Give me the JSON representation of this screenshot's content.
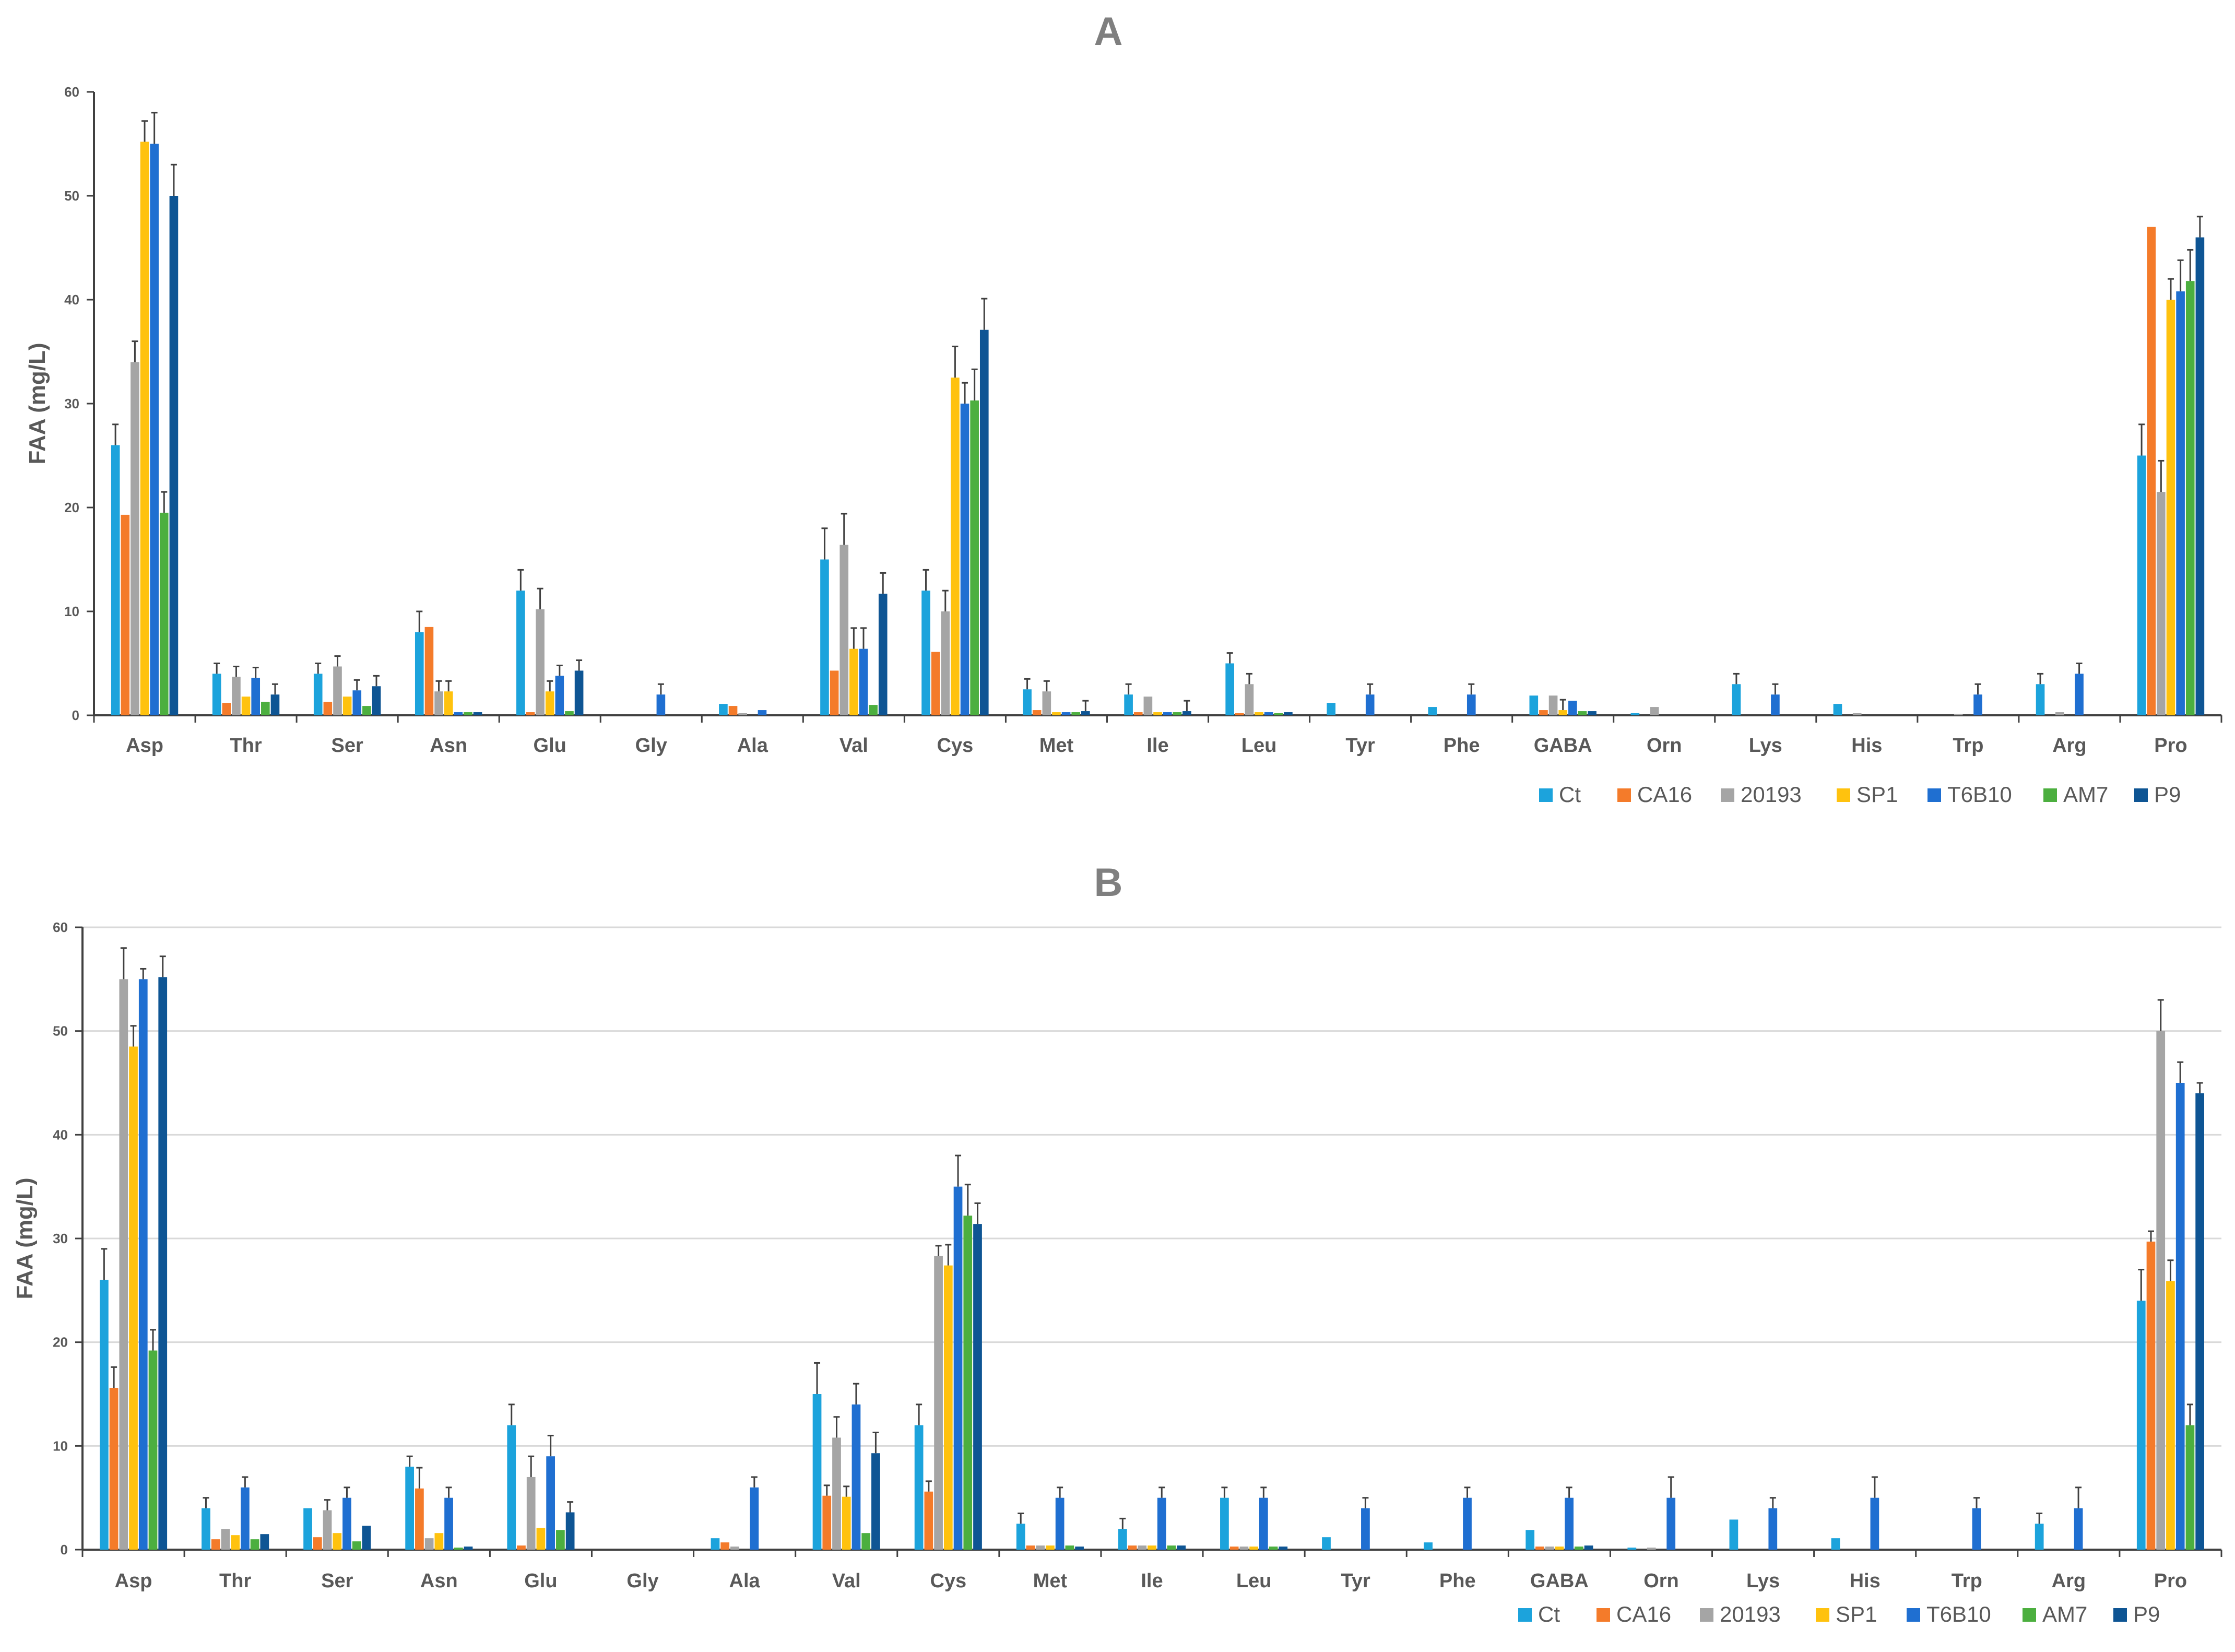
{
  "chart_data": [
    {
      "type": "bar",
      "title": "A",
      "ylabel": "FAA (mg/L)",
      "xlabel": "",
      "ylim": [
        0,
        60
      ],
      "yticks": [
        0,
        10,
        20,
        30,
        40,
        50,
        60
      ],
      "grid": false,
      "error_bars": true,
      "legend_position": "bottom-right",
      "categories": [
        "Asp",
        "Thr",
        "Ser",
        "Asn",
        "Glu",
        "Gly",
        "Ala",
        "Val",
        "Cys",
        "Met",
        "Ile",
        "Leu",
        "Tyr",
        "Phe",
        "GABA",
        "Orn",
        "Lys",
        "His",
        "Trp",
        "Arg",
        "Pro"
      ],
      "series": [
        {
          "name": "Ct",
          "color": "#1ca3dc",
          "values": [
            26,
            4,
            4,
            8,
            12,
            0,
            1.1,
            15,
            12,
            2.5,
            2,
            5,
            1.2,
            0.8,
            1.9,
            0.2,
            3,
            1.1,
            0,
            3,
            25
          ],
          "errors": [
            2,
            1,
            1,
            2,
            2,
            0,
            0,
            3,
            2,
            1,
            1,
            1,
            0,
            0,
            0,
            0,
            1,
            0,
            0,
            1,
            3
          ]
        },
        {
          "name": "CA16",
          "color": "#f47b2a",
          "values": [
            19.3,
            1.2,
            1.3,
            8.5,
            0.3,
            0,
            0.9,
            4.3,
            6.1,
            0.5,
            0.3,
            0.2,
            0,
            0,
            0.5,
            0,
            0,
            0,
            0,
            0,
            47
          ]
        },
        {
          "name": "20193",
          "color": "#a5a5a5",
          "values": [
            34,
            3.7,
            4.7,
            2.3,
            10.2,
            0,
            0.2,
            16.4,
            10,
            2.3,
            1.8,
            3,
            0,
            0,
            1.9,
            0.8,
            0,
            0.2,
            0.1,
            0.3,
            21.5
          ],
          "errors": [
            2,
            1,
            1,
            1,
            2,
            0,
            0,
            3,
            2,
            1,
            0,
            1,
            0,
            0,
            0,
            0,
            0,
            0,
            0,
            0,
            3
          ]
        },
        {
          "name": "SP1",
          "color": "#ffc20e",
          "values": [
            55.2,
            1.8,
            1.8,
            2.3,
            2.3,
            0,
            0,
            6.4,
            32.5,
            0.3,
            0.3,
            0.3,
            0,
            0,
            0.5,
            0,
            0,
            0,
            0,
            0,
            40
          ],
          "errors": [
            2,
            0,
            0,
            1,
            1,
            0,
            0,
            2,
            3,
            0,
            0,
            0,
            0,
            0,
            1,
            0,
            0,
            0,
            0,
            0,
            2
          ]
        },
        {
          "name": "T6B10",
          "color": "#1f6fd1",
          "values": [
            55,
            3.6,
            2.4,
            0.3,
            3.8,
            2,
            0.5,
            6.4,
            30,
            0.3,
            0.3,
            0.3,
            2,
            2,
            1.4,
            0,
            2,
            0,
            2,
            4,
            40.8
          ],
          "errors": [
            3,
            1,
            1,
            0,
            1,
            1,
            0,
            2,
            2,
            0,
            0,
            0,
            1,
            1,
            0,
            0,
            1,
            0,
            1,
            1,
            3
          ]
        },
        {
          "name": "AM7",
          "color": "#4caf3f",
          "values": [
            19.5,
            1.3,
            0.9,
            0.3,
            0.4,
            0,
            0,
            1,
            30.3,
            0.3,
            0.3,
            0.2,
            0,
            0,
            0.4,
            0,
            0,
            0,
            0,
            0,
            41.8
          ],
          "errors": [
            2,
            0,
            0,
            0,
            0,
            0,
            0,
            0,
            3,
            0,
            0,
            0,
            0,
            0,
            0,
            0,
            0,
            0,
            0,
            0,
            3
          ]
        },
        {
          "name": "P9",
          "color": "#0e5594",
          "values": [
            50,
            2,
            2.8,
            0.3,
            4.3,
            0,
            0,
            11.7,
            37.1,
            0.4,
            0.4,
            0.3,
            0,
            0,
            0.4,
            0,
            0,
            0,
            0,
            0,
            46
          ],
          "errors": [
            3,
            1,
            1,
            0,
            1,
            0,
            0,
            2,
            3,
            1,
            1,
            0,
            0,
            0,
            0,
            0,
            0,
            0,
            0,
            0,
            2
          ]
        }
      ]
    },
    {
      "type": "bar",
      "title": "B",
      "ylabel": "FAA (mg/L)",
      "xlabel": "",
      "ylim": [
        0,
        60
      ],
      "yticks": [
        0,
        10,
        20,
        30,
        40,
        50,
        60
      ],
      "grid": true,
      "error_bars": true,
      "legend_position": "bottom-right",
      "categories": [
        "Asp",
        "Thr",
        "Ser",
        "Asn",
        "Glu",
        "Gly",
        "Ala",
        "Val",
        "Cys",
        "Met",
        "Ile",
        "Leu",
        "Tyr",
        "Phe",
        "GABA",
        "Orn",
        "Lys",
        "His",
        "Trp",
        "Arg",
        "Pro"
      ],
      "series": [
        {
          "name": "Ct",
          "color": "#1ca3dc",
          "values": [
            26,
            4,
            4,
            8,
            12,
            0,
            1.1,
            15,
            12,
            2.5,
            2,
            5,
            1.2,
            0.7,
            1.9,
            0.2,
            2.9,
            1.1,
            0,
            2.5,
            24
          ],
          "errors": [
            3,
            1,
            0,
            1,
            2,
            0,
            0,
            3,
            2,
            1,
            1,
            1,
            0,
            0,
            0,
            0,
            0,
            0,
            0,
            1,
            3
          ]
        },
        {
          "name": "CA16",
          "color": "#f47b2a",
          "values": [
            15.6,
            1,
            1.2,
            5.9,
            0.4,
            0,
            0.7,
            5.2,
            5.6,
            0.4,
            0.4,
            0.3,
            0,
            0,
            0.3,
            0,
            0,
            0,
            0,
            0,
            29.7
          ],
          "errors": [
            2,
            0,
            0,
            2,
            0,
            0,
            0,
            1,
            1,
            0,
            0,
            0,
            0,
            0,
            0,
            0,
            0,
            0,
            0,
            0,
            1
          ]
        },
        {
          "name": "20193",
          "color": "#a5a5a5",
          "values": [
            55,
            2,
            3.8,
            1.1,
            7,
            0,
            0.3,
            10.8,
            28.3,
            0.4,
            0.4,
            0.3,
            0,
            0,
            0.3,
            0.2,
            0,
            0,
            0,
            0,
            50
          ],
          "errors": [
            3,
            0,
            1,
            0,
            2,
            0,
            0,
            2,
            1,
            0,
            0,
            0,
            0,
            0,
            0,
            0,
            0,
            0,
            0,
            0,
            3
          ]
        },
        {
          "name": "SP1",
          "color": "#ffc20e",
          "values": [
            48.5,
            1.4,
            1.6,
            1.6,
            2.1,
            0,
            0,
            5.1,
            27.4,
            0.4,
            0.4,
            0.3,
            0,
            0,
            0.3,
            0,
            0,
            0,
            0,
            0,
            25.9
          ],
          "errors": [
            2,
            0,
            0,
            0,
            0,
            0,
            0,
            1,
            2,
            0,
            0,
            0,
            0,
            0,
            0,
            0,
            0,
            0,
            0,
            0,
            2
          ]
        },
        {
          "name": "T6B10",
          "color": "#1f6fd1",
          "values": [
            55,
            6,
            5,
            5,
            9,
            0,
            6,
            14,
            35,
            5,
            5,
            5,
            4,
            5,
            5,
            5,
            4,
            5,
            4,
            4,
            45
          ],
          "errors": [
            1,
            1,
            1,
            1,
            2,
            0,
            1,
            2,
            3,
            1,
            1,
            1,
            1,
            1,
            1,
            2,
            1,
            2,
            1,
            2,
            2
          ]
        },
        {
          "name": "AM7",
          "color": "#4caf3f",
          "values": [
            19.2,
            1,
            0.8,
            0.2,
            1.9,
            0,
            0,
            1.6,
            32.2,
            0.4,
            0.4,
            0.3,
            0,
            0,
            0.3,
            0,
            0,
            0,
            0,
            0,
            12
          ],
          "errors": [
            2,
            0,
            0,
            0,
            0,
            0,
            0,
            0,
            3,
            0,
            0,
            0,
            0,
            0,
            0,
            0,
            0,
            0,
            0,
            0,
            2
          ]
        },
        {
          "name": "P9",
          "color": "#0e5594",
          "values": [
            55.2,
            1.5,
            2.3,
            0.3,
            3.6,
            0,
            0,
            9.3,
            31.4,
            0.3,
            0.4,
            0.3,
            0,
            0,
            0.4,
            0,
            0,
            0,
            0,
            0,
            44
          ],
          "errors": [
            2,
            0,
            0,
            0,
            1,
            0,
            0,
            2,
            2,
            0,
            0,
            0,
            0,
            0,
            0,
            0,
            0,
            0,
            0,
            0,
            1
          ]
        }
      ]
    }
  ]
}
